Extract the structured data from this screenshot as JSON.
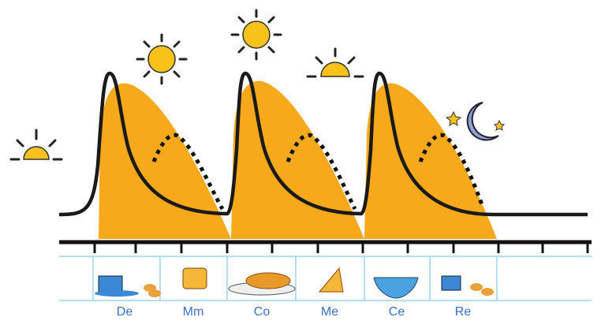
{
  "labels": [
    "De",
    "Mm",
    "Co",
    "Me",
    "Ce",
    "Re"
  ]
}
